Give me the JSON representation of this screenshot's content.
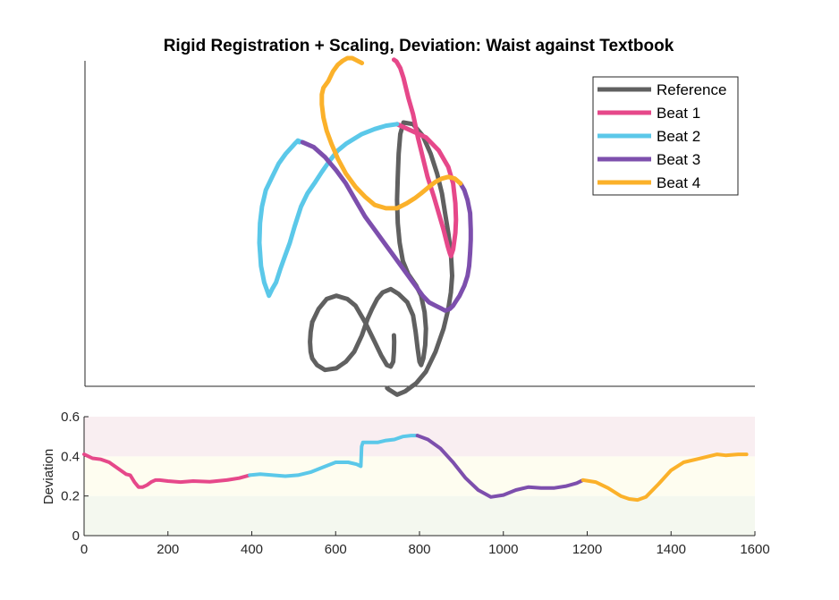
{
  "chart_data": [
    {
      "type": "line",
      "title": "Rigid Registration + Scaling, Deviation: Waist against Textbook",
      "xlabel": "",
      "ylabel": "",
      "axes": "left and bottom lines only, no tick labels",
      "legend": {
        "placement": "top-right",
        "entries": [
          {
            "name": "Reference",
            "color": "#606060"
          },
          {
            "name": "Beat 1",
            "color": "#e6488a"
          },
          {
            "name": "Beat 2",
            "color": "#5bc8e9"
          },
          {
            "name": "Beat 3",
            "color": "#7d4fad"
          },
          {
            "name": "Beat 4",
            "color": "#fbb12a"
          }
        ]
      },
      "xlim": [
        0,
        1000
      ],
      "ylim": [
        0,
        1000
      ],
      "series": [
        {
          "name": "Reference",
          "color": "#606060",
          "segments": [
            [
              [
                399,
                1000
              ],
              [
                405,
                1005
              ],
              [
                430,
                1020
              ],
              [
                455,
                1010
              ],
              [
                490,
                985
              ],
              [
                520,
                950
              ],
              [
                550,
                890
              ],
              [
                575,
                820
              ],
              [
                590,
                760
              ],
              [
                598,
                710
              ],
              [
                602,
                660
              ],
              [
                598,
                590
              ],
              [
                590,
                530
              ],
              [
                580,
                470
              ],
              [
                570,
                410
              ],
              [
                555,
                350
              ],
              [
                535,
                290
              ],
              [
                510,
                235
              ],
              [
                480,
                200
              ],
              [
                450,
                195
              ],
              [
                440,
                230
              ],
              [
                435,
                290
              ],
              [
                432,
                360
              ],
              [
                430,
                430
              ],
              [
                432,
                500
              ],
              [
                438,
                560
              ],
              [
                448,
                615
              ],
              [
                465,
                655
              ],
              [
                490,
                690
              ],
              [
                505,
                720
              ],
              [
                516,
                770
              ],
              [
                520,
                820
              ],
              [
                518,
                870
              ],
              [
                512,
                910
              ],
              [
                505,
                930
              ],
              [
                500,
                920
              ],
              [
                494,
                880
              ],
              [
                488,
                830
              ],
              [
                480,
                780
              ],
              [
                462,
                740
              ],
              [
                435,
                715
              ],
              [
                410,
                700
              ],
              [
                385,
                710
              ],
              [
                368,
                730
              ],
              [
                352,
                760
              ],
              [
                338,
                790
              ],
              [
                320,
                840
              ],
              [
                296,
                890
              ],
              [
                270,
                920
              ],
              [
                240,
                940
              ],
              [
                205,
                945
              ],
              [
                180,
                930
              ],
              [
                165,
                910
              ],
              [
                160,
                890
              ],
              [
                158,
                860
              ],
              [
                160,
                830
              ],
              [
                165,
                800
              ]
            ],
            [
              [
                165,
                800
              ],
              [
                185,
                760
              ],
              [
                210,
                730
              ],
              [
                240,
                720
              ],
              [
                275,
                730
              ],
              [
                300,
                750
              ],
              [
                330,
                800
              ],
              [
                360,
                860
              ],
              [
                380,
                900
              ],
              [
                398,
                930
              ],
              [
                410,
                935
              ],
              [
                418,
                920
              ],
              [
                420,
                890
              ],
              [
                421,
                860
              ],
              [
                420,
                840
              ]
            ]
          ]
        },
        {
          "name": "Beat 1",
          "color": "#e6488a",
          "segments": [
            [
              [
                430,
                200
              ],
              [
                475,
                220
              ],
              [
                520,
                240
              ],
              [
                560,
                280
              ],
              [
                590,
                330
              ],
              [
                605,
                380
              ],
              [
                612,
                440
              ],
              [
                614,
                490
              ],
              [
                612,
                530
              ],
              [
                605,
                580
              ],
              [
                598,
                600
              ],
              [
                594,
                590
              ],
              [
                588,
                570
              ],
              [
                575,
                520
              ],
              [
                560,
                470
              ],
              [
                545,
                420
              ],
              [
                525,
                360
              ],
              [
                510,
                300
              ],
              [
                495,
                240
              ],
              [
                480,
                170
              ],
              [
                465,
                120
              ],
              [
                450,
                60
              ],
              [
                440,
                30
              ],
              [
                428,
                10
              ],
              [
                420,
                5
              ]
            ]
          ]
        },
        {
          "name": "Beat 2",
          "color": "#5bc8e9",
          "segments": [
            [
              [
                430,
                200
              ],
              [
                395,
                205
              ],
              [
                360,
                215
              ],
              [
                320,
                230
              ],
              [
                295,
                245
              ],
              [
                270,
                260
              ],
              [
                245,
                280
              ],
              [
                220,
                310
              ],
              [
                195,
                345
              ],
              [
                175,
                375
              ],
              [
                150,
                410
              ],
              [
                130,
                450
              ],
              [
                110,
                510
              ],
              [
                95,
                560
              ],
              [
                80,
                600
              ],
              [
                65,
                640
              ],
              [
                52,
                680
              ],
              [
                40,
                700
              ],
              [
                30,
                720
              ],
              [
                15,
                680
              ],
              [
                5,
                630
              ],
              [
                0,
                560
              ],
              [
                2,
                500
              ],
              [
                8,
                450
              ],
              [
                20,
                400
              ],
              [
                40,
                360
              ],
              [
                60,
                320
              ],
              [
                82,
                290
              ],
              [
                110,
                260
              ],
              [
                120,
                250
              ],
              [
                125,
                255
              ]
            ],
            [
              [
                120,
                250
              ],
              [
                135,
                255
              ]
            ]
          ]
        },
        {
          "name": "Beat 3",
          "color": "#7d4fad",
          "segments": [
            [
              [
                135,
                255
              ],
              [
                170,
                270
              ],
              [
                205,
                300
              ],
              [
                240,
                340
              ],
              [
                270,
                380
              ],
              [
                300,
                430
              ],
              [
                330,
                480
              ],
              [
                360,
                520
              ],
              [
                390,
                560
              ],
              [
                420,
                600
              ],
              [
                450,
                640
              ],
              [
                480,
                680
              ],
              [
                495,
                700
              ],
              [
                510,
                720
              ],
              [
                530,
                740
              ],
              [
                550,
                750
              ],
              [
                570,
                760
              ],
              [
                580,
                765
              ],
              [
                595,
                760
              ],
              [
                605,
                750
              ],
              [
                615,
                735
              ],
              [
                625,
                720
              ],
              [
                640,
                690
              ],
              [
                650,
                660
              ],
              [
                655,
                630
              ],
              [
                658,
                590
              ],
              [
                660,
                550
              ],
              [
                660,
                520
              ],
              [
                658,
                470
              ],
              [
                650,
                430
              ],
              [
                640,
                400
              ],
              [
                628,
                380
              ]
            ]
          ]
        },
        {
          "name": "Beat 4",
          "color": "#fbb12a",
          "segments": [
            [
              [
                628,
                380
              ],
              [
                610,
                365
              ],
              [
                590,
                360
              ],
              [
                570,
                365
              ],
              [
                550,
                375
              ],
              [
                530,
                390
              ],
              [
                505,
                410
              ],
              [
                485,
                425
              ],
              [
                460,
                440
              ],
              [
                430,
                455
              ],
              [
                395,
                455
              ],
              [
                360,
                445
              ],
              [
                330,
                420
              ],
              [
                300,
                390
              ],
              [
                270,
                350
              ],
              [
                245,
                305
              ],
              [
                225,
                260
              ],
              [
                210,
                220
              ],
              [
                200,
                180
              ],
              [
                195,
                140
              ],
              [
                195,
                110
              ],
              [
                200,
                90
              ],
              [
                215,
                70
              ],
              [
                230,
                40
              ],
              [
                245,
                20
              ],
              [
                260,
                8
              ],
              [
                275,
                0
              ],
              [
                290,
                0
              ],
              [
                300,
                5
              ],
              [
                310,
                10
              ],
              [
                320,
                15
              ]
            ]
          ]
        }
      ]
    },
    {
      "type": "line",
      "title": "",
      "xlabel": "",
      "ylabel": "Deviation",
      "xlim": [
        0,
        1600
      ],
      "ylim": [
        0,
        0.6
      ],
      "x_ticks": [
        "0",
        "200",
        "400",
        "600",
        "800",
        "1000",
        "1200",
        "1400",
        "1600"
      ],
      "y_ticks": [
        "0",
        "0.2",
        "0.4",
        "0.6"
      ],
      "bands": [
        {
          "from": 0,
          "to": 0.2,
          "color": "#f4f8ef"
        },
        {
          "from": 0.2,
          "to": 0.4,
          "color": "#fefdf0"
        },
        {
          "from": 0.4,
          "to": 0.6,
          "color": "#f9eef1"
        }
      ],
      "series": [
        {
          "name": "Beat 1",
          "color": "#e6488a",
          "x": [
            0,
            20,
            40,
            60,
            80,
            100,
            110,
            120,
            130,
            140,
            150,
            160,
            170,
            180,
            200,
            230,
            260,
            300,
            340,
            370,
            395
          ],
          "y": [
            0.41,
            0.39,
            0.385,
            0.37,
            0.34,
            0.31,
            0.305,
            0.27,
            0.245,
            0.245,
            0.255,
            0.27,
            0.28,
            0.28,
            0.275,
            0.27,
            0.275,
            0.272,
            0.28,
            0.29,
            0.305
          ]
        },
        {
          "name": "Beat 2",
          "color": "#5bc8e9",
          "x": [
            395,
            420,
            450,
            480,
            510,
            540,
            570,
            600,
            630,
            650,
            660,
            662,
            665,
            680,
            700,
            720,
            740,
            760,
            780,
            795
          ],
          "y": [
            0.305,
            0.31,
            0.305,
            0.3,
            0.305,
            0.32,
            0.345,
            0.37,
            0.37,
            0.36,
            0.35,
            0.45,
            0.47,
            0.47,
            0.47,
            0.48,
            0.485,
            0.5,
            0.505,
            0.505
          ]
        },
        {
          "name": "Beat 3",
          "color": "#7d4fad",
          "x": [
            795,
            820,
            850,
            880,
            910,
            940,
            970,
            1000,
            1030,
            1060,
            1090,
            1120,
            1150,
            1175,
            1190
          ],
          "y": [
            0.505,
            0.485,
            0.44,
            0.37,
            0.29,
            0.23,
            0.195,
            0.205,
            0.23,
            0.245,
            0.24,
            0.24,
            0.25,
            0.265,
            0.28
          ]
        },
        {
          "name": "Beat 4",
          "color": "#fbb12a",
          "x": [
            1190,
            1220,
            1250,
            1280,
            1300,
            1320,
            1340,
            1370,
            1400,
            1430,
            1460,
            1490,
            1510,
            1530,
            1560,
            1580
          ],
          "y": [
            0.28,
            0.27,
            0.24,
            0.2,
            0.185,
            0.18,
            0.195,
            0.26,
            0.33,
            0.37,
            0.385,
            0.4,
            0.41,
            0.405,
            0.41,
            0.41
          ]
        }
      ]
    }
  ]
}
